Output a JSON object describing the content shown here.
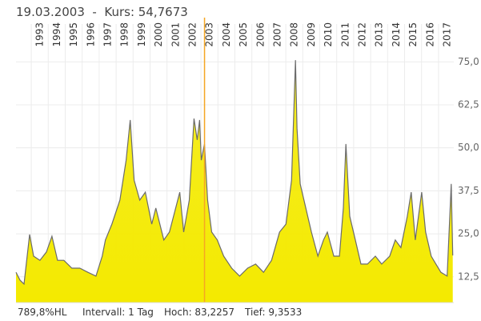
{
  "chart_data": {
    "type": "area",
    "title": "19.03.2003  -  Kurs: 54,7673",
    "annotations": [
      "789,8%HL",
      "Intervall: 1 Tag",
      "Hoch: 83,2257",
      "Tief: 9,3533"
    ],
    "color": "#f4ea00",
    "line_color": "#6b6b6b",
    "cursor_color": "#f5a623",
    "cursor_x": 2003.21,
    "grid": true,
    "xlim": [
      1992.1,
      2017.9
    ],
    "ylim": [
      5,
      86
    ],
    "xticks": [
      1993,
      1994,
      1995,
      1996,
      1997,
      1998,
      1999,
      2000,
      2001,
      2002,
      2003,
      2004,
      2005,
      2006,
      2007,
      2008,
      2009,
      2010,
      2011,
      2012,
      2013,
      2014,
      2015,
      2016,
      2017
    ],
    "yticks": [
      {
        "value": 12.5,
        "label": "12,5"
      },
      {
        "value": 25,
        "label": "25,0"
      },
      {
        "value": 37.5,
        "label": "37,5"
      },
      {
        "value": 50,
        "label": "50,0"
      },
      {
        "value": 62.5,
        "label": "62,5"
      },
      {
        "value": 75,
        "label": "75,0"
      }
    ],
    "x": [
      1992.1,
      1992.34,
      1992.57,
      1992.9,
      1993.14,
      1993.51,
      1993.89,
      1994.22,
      1994.55,
      1994.92,
      1995.39,
      1995.86,
      1996.34,
      1996.81,
      1997.18,
      1997.37,
      1997.75,
      1998.22,
      1998.59,
      1998.83,
      1999.06,
      1999.39,
      1999.72,
      2000.1,
      2000.34,
      2000.81,
      2001.14,
      2001.51,
      2001.75,
      2001.98,
      2002.31,
      2002.59,
      2002.78,
      2002.92,
      2003.02,
      2003.21,
      2003.39,
      2003.63,
      2003.96,
      2004.34,
      2004.81,
      2005.28,
      2005.75,
      2006.22,
      2006.69,
      2007.16,
      2007.63,
      2008.01,
      2008.34,
      2008.57,
      2008.66,
      2008.85,
      2009.18,
      2009.51,
      2009.89,
      2010.22,
      2010.45,
      2010.83,
      2011.16,
      2011.39,
      2011.54,
      2011.77,
      2012.1,
      2012.43,
      2012.81,
      2013.28,
      2013.65,
      2014.12,
      2014.45,
      2014.78,
      2015.16,
      2015.39,
      2015.63,
      2016.01,
      2016.24,
      2016.57,
      2016.85,
      2017.14,
      2017.51,
      2017.75,
      2017.84
    ],
    "values": [
      13.8,
      11.5,
      10.4,
      24.8,
      18.5,
      17.3,
      19.7,
      24.3,
      17.3,
      17.3,
      15.0,
      15.0,
      13.8,
      12.7,
      18.5,
      23.2,
      27.8,
      34.8,
      46.4,
      58.1,
      40.6,
      34.8,
      37.1,
      27.8,
      32.5,
      23.2,
      25.5,
      32.5,
      37.1,
      25.5,
      34.8,
      58.5,
      52.3,
      58.1,
      46.4,
      51.1,
      34.8,
      25.5,
      23.2,
      18.5,
      15.0,
      12.7,
      15.0,
      16.2,
      13.8,
      17.3,
      25.5,
      27.8,
      40.6,
      75.5,
      55.7,
      39.5,
      32.5,
      25.5,
      18.5,
      23.2,
      25.5,
      18.5,
      18.5,
      32.5,
      51.1,
      30.1,
      23.2,
      16.2,
      16.2,
      18.5,
      16.2,
      18.5,
      23.2,
      21.0,
      30.1,
      37.1,
      23.2,
      37.1,
      25.5,
      18.5,
      16.2,
      13.8,
      12.7,
      39.5,
      18.7
    ]
  }
}
